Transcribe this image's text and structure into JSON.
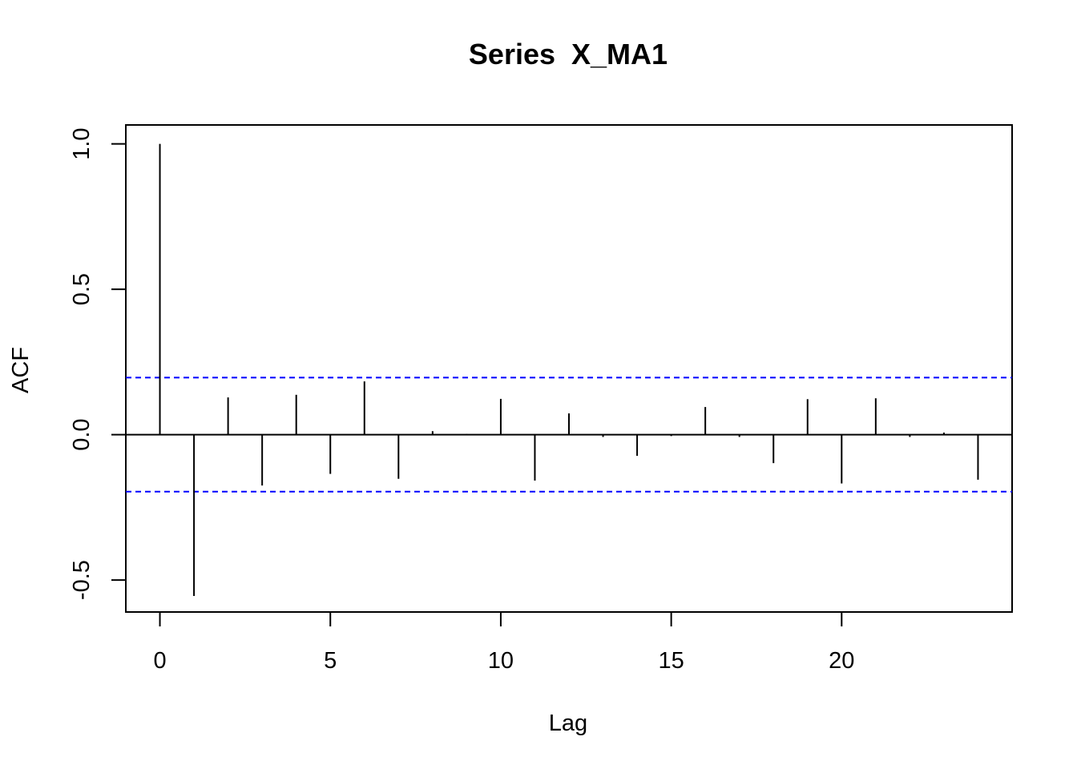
{
  "chart_data": {
    "type": "bar",
    "title": "Series  X_MA1",
    "xlabel": "Lag",
    "ylabel": "ACF",
    "x": [
      0,
      1,
      2,
      3,
      4,
      5,
      6,
      7,
      8,
      9,
      10,
      11,
      12,
      13,
      14,
      15,
      16,
      17,
      18,
      19,
      20,
      21,
      22,
      23,
      24
    ],
    "values": [
      1.0,
      -0.555,
      0.128,
      -0.175,
      0.137,
      -0.135,
      0.183,
      -0.152,
      0.012,
      0.002,
      0.123,
      -0.158,
      0.073,
      -0.008,
      -0.073,
      -0.005,
      0.095,
      -0.008,
      -0.098,
      0.122,
      -0.168,
      0.125,
      -0.008,
      0.007,
      -0.155
    ],
    "xlim": [
      -1,
      25
    ],
    "ylim": [
      -0.61,
      1.065
    ],
    "xticks": [
      0,
      5,
      10,
      15,
      20
    ],
    "xtick_labels": [
      "0",
      "5",
      "10",
      "15",
      "20"
    ],
    "yticks": [
      -0.5,
      0.0,
      0.5,
      1.0
    ],
    "ytick_labels": [
      "-0.5",
      "0.0",
      "0.5",
      "1.0"
    ],
    "confidence_band": 0.196,
    "band_color": "#0000ff",
    "line_color": "#000000",
    "grid": false,
    "legend": false
  }
}
